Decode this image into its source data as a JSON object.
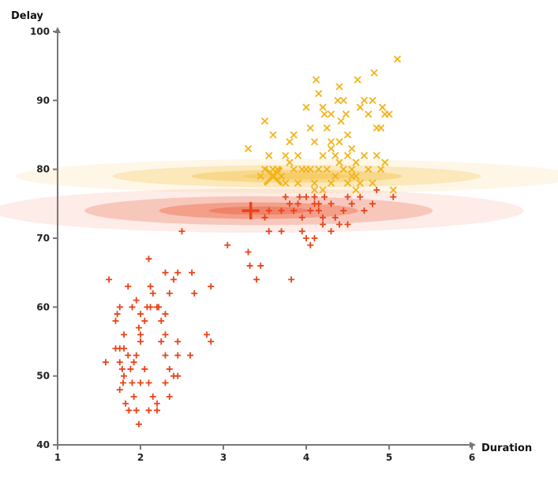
{
  "chart_data": {
    "type": "scatter",
    "xlabel": "Duration",
    "ylabel": "Delay",
    "xlim": [
      1,
      6
    ],
    "ylim": [
      40,
      100
    ],
    "xticks": [
      "1",
      "2",
      "3",
      "4",
      "5",
      "6"
    ],
    "yticks": [
      "40",
      "50",
      "60",
      "70",
      "80",
      "90",
      "100"
    ],
    "grid": false,
    "legend": "none",
    "series": [
      {
        "marker": "plus",
        "color": "#e8431a",
        "points": [
          [
            1.62,
            64
          ],
          [
            1.7,
            58
          ],
          [
            1.75,
            60
          ],
          [
            1.8,
            56
          ],
          [
            1.72,
            59
          ],
          [
            1.85,
            63
          ],
          [
            1.9,
            60
          ],
          [
            1.95,
            61
          ],
          [
            1.75,
            54
          ],
          [
            1.8,
            54
          ],
          [
            1.85,
            53
          ],
          [
            1.78,
            51
          ],
          [
            1.9,
            49
          ],
          [
            1.92,
            47
          ],
          [
            1.82,
            46
          ],
          [
            1.86,
            45
          ],
          [
            1.95,
            45
          ],
          [
            1.75,
            48
          ],
          [
            1.79,
            49
          ],
          [
            1.88,
            51
          ],
          [
            1.92,
            52
          ],
          [
            1.95,
            53
          ],
          [
            2.0,
            55
          ],
          [
            2.0,
            56
          ],
          [
            1.98,
            57
          ],
          [
            2.05,
            51
          ],
          [
            2.0,
            49
          ],
          [
            2.1,
            49
          ],
          [
            2.15,
            47
          ],
          [
            2.2,
            46
          ],
          [
            2.1,
            45
          ],
          [
            2.2,
            45
          ],
          [
            1.98,
            43
          ],
          [
            1.58,
            52
          ],
          [
            1.7,
            54
          ],
          [
            1.75,
            52
          ],
          [
            1.8,
            50
          ],
          [
            2.05,
            58
          ],
          [
            2.08,
            60
          ],
          [
            2.15,
            62
          ],
          [
            2.2,
            60
          ],
          [
            2.25,
            58
          ],
          [
            2.3,
            56
          ],
          [
            2.25,
            55
          ],
          [
            2.3,
            53
          ],
          [
            2.35,
            51
          ],
          [
            2.4,
            50
          ],
          [
            2.45,
            50
          ],
          [
            2.35,
            47
          ],
          [
            2.45,
            53
          ],
          [
            2.45,
            55
          ],
          [
            2.3,
            59
          ],
          [
            2.35,
            62
          ],
          [
            2.4,
            64
          ],
          [
            2.45,
            65
          ],
          [
            2.1,
            67
          ],
          [
            2.12,
            63
          ],
          [
            2.22,
            60
          ],
          [
            2.3,
            65
          ],
          [
            2.65,
            62
          ],
          [
            2.62,
            65
          ],
          [
            2.6,
            53
          ],
          [
            2.8,
            56
          ],
          [
            2.85,
            55
          ],
          [
            2.85,
            63
          ],
          [
            2.3,
            49
          ],
          [
            2.0,
            59
          ],
          [
            2.12,
            60
          ],
          [
            2.5,
            71
          ],
          [
            3.05,
            69
          ],
          [
            3.3,
            68
          ],
          [
            3.32,
            66
          ],
          [
            3.4,
            64
          ],
          [
            3.45,
            66
          ],
          [
            3.55,
            71
          ],
          [
            3.7,
            71
          ],
          [
            3.82,
            64
          ],
          [
            3.5,
            73
          ],
          [
            3.55,
            74
          ],
          [
            3.7,
            74
          ],
          [
            3.75,
            76
          ],
          [
            3.8,
            75
          ],
          [
            3.85,
            74
          ],
          [
            3.9,
            75
          ],
          [
            3.95,
            71
          ],
          [
            4.0,
            70
          ],
          [
            4.05,
            69
          ],
          [
            4.1,
            70
          ],
          [
            3.95,
            73
          ],
          [
            4.05,
            74
          ],
          [
            4.1,
            75
          ],
          [
            4.15,
            74
          ],
          [
            4.2,
            73
          ],
          [
            4.22,
            76
          ],
          [
            4.3,
            75
          ],
          [
            4.35,
            73
          ],
          [
            4.4,
            72
          ],
          [
            4.45,
            74
          ],
          [
            4.5,
            76
          ],
          [
            4.55,
            75
          ],
          [
            4.65,
            76
          ],
          [
            4.7,
            74
          ],
          [
            4.8,
            75
          ],
          [
            4.85,
            77
          ],
          [
            5.05,
            76
          ],
          [
            4.1,
            76
          ],
          [
            4.2,
            72
          ],
          [
            4.3,
            71
          ],
          [
            4.5,
            72
          ],
          [
            4.15,
            75
          ],
          [
            4.0,
            76
          ],
          [
            3.92,
            76
          ]
        ],
        "centroid": [
          3.33,
          74
        ]
      },
      {
        "marker": "cross",
        "color": "#f2b41a",
        "points": [
          [
            3.3,
            83
          ],
          [
            3.5,
            87
          ],
          [
            3.6,
            85
          ],
          [
            3.55,
            82
          ],
          [
            3.65,
            80
          ],
          [
            3.75,
            82
          ],
          [
            3.8,
            84
          ],
          [
            3.85,
            85
          ],
          [
            3.9,
            82
          ],
          [
            3.95,
            80
          ],
          [
            4.0,
            89
          ],
          [
            4.05,
            86
          ],
          [
            4.1,
            84
          ],
          [
            4.12,
            93
          ],
          [
            4.15,
            91
          ],
          [
            4.2,
            89
          ],
          [
            4.22,
            88
          ],
          [
            4.25,
            86
          ],
          [
            4.3,
            84
          ],
          [
            4.35,
            82
          ],
          [
            4.38,
            90
          ],
          [
            4.4,
            92
          ],
          [
            4.45,
            90
          ],
          [
            4.48,
            88
          ],
          [
            4.5,
            85
          ],
          [
            4.55,
            83
          ],
          [
            4.6,
            81
          ],
          [
            4.62,
            93
          ],
          [
            4.65,
            89
          ],
          [
            4.7,
            90
          ],
          [
            4.75,
            88
          ],
          [
            4.8,
            90
          ],
          [
            4.82,
            94
          ],
          [
            4.85,
            86
          ],
          [
            4.9,
            86
          ],
          [
            4.92,
            89
          ],
          [
            4.95,
            88
          ],
          [
            5.0,
            88
          ],
          [
            5.05,
            77
          ],
          [
            5.1,
            96
          ],
          [
            4.05,
            80
          ],
          [
            4.1,
            78
          ],
          [
            4.15,
            80
          ],
          [
            4.2,
            82
          ],
          [
            4.25,
            80
          ],
          [
            4.3,
            78
          ],
          [
            4.35,
            79
          ],
          [
            4.4,
            81
          ],
          [
            4.45,
            80
          ],
          [
            4.5,
            78
          ],
          [
            4.55,
            80
          ],
          [
            4.6,
            79
          ],
          [
            4.65,
            78
          ],
          [
            4.7,
            82
          ],
          [
            4.75,
            80
          ],
          [
            4.8,
            78
          ],
          [
            4.85,
            82
          ],
          [
            4.9,
            80
          ],
          [
            3.6,
            80
          ],
          [
            3.7,
            79
          ],
          [
            3.8,
            81
          ],
          [
            3.9,
            78
          ],
          [
            4.0,
            80
          ],
          [
            4.1,
            77
          ],
          [
            4.2,
            77
          ],
          [
            4.3,
            83
          ],
          [
            4.4,
            84
          ],
          [
            4.5,
            82
          ],
          [
            4.55,
            79
          ],
          [
            4.6,
            77
          ],
          [
            3.5,
            80
          ],
          [
            3.45,
            79
          ],
          [
            3.75,
            78
          ],
          [
            3.85,
            80
          ],
          [
            4.95,
            81
          ],
          [
            4.3,
            88
          ],
          [
            4.42,
            87
          ]
        ],
        "centroid": [
          3.6,
          79
        ]
      }
    ],
    "clusters": [
      {
        "center": [
          3.33,
          74
        ],
        "x_spread": [
          1.7,
          1.0
        ],
        "y_spread": [
          1.8,
          1.0
        ],
        "color": "#e8431a"
      },
      {
        "center": [
          3.6,
          79
        ],
        "x_spread": [
          1.8,
          1.0
        ],
        "y_spread": [
          1.4,
          0.9
        ],
        "color": "#f2b41a"
      }
    ]
  }
}
